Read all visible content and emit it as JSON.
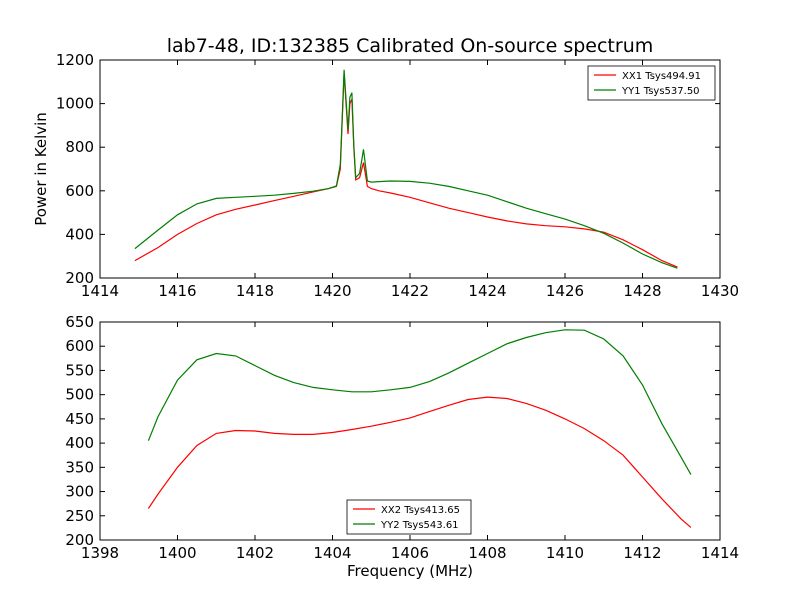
{
  "title": "lab7-48, ID:132385 Calibrated On-source spectrum",
  "colors": {
    "red": "#ff0000",
    "green": "#007f00"
  },
  "chart_data": [
    {
      "type": "line",
      "xlabel": "",
      "ylabel": "Power in Kelvin",
      "xlim": [
        1414,
        1430
      ],
      "ylim": [
        200,
        1200
      ],
      "xticks": [
        "1414",
        "1416",
        "1418",
        "1420",
        "1422",
        "1424",
        "1426",
        "1428",
        "1430"
      ],
      "yticks": [
        "200",
        "400",
        "600",
        "800",
        "1000",
        "1200"
      ],
      "legend_position": "top-right",
      "series": [
        {
          "name": "XX1 Tsys494.91",
          "color": "#ff0000",
          "x": [
            1414.9,
            1415.5,
            1416.0,
            1416.5,
            1417.0,
            1417.5,
            1418.0,
            1418.5,
            1419.0,
            1419.5,
            1419.9,
            1420.1,
            1420.2,
            1420.3,
            1420.4,
            1420.45,
            1420.5,
            1420.55,
            1420.6,
            1420.7,
            1420.8,
            1420.9,
            1421.0,
            1421.2,
            1421.5,
            1422.0,
            1422.5,
            1423.0,
            1423.5,
            1424.0,
            1424.5,
            1425.0,
            1425.5,
            1426.0,
            1426.5,
            1427.0,
            1427.5,
            1428.0,
            1428.5,
            1428.9
          ],
          "y": [
            280,
            340,
            400,
            450,
            490,
            515,
            535,
            555,
            575,
            595,
            610,
            620,
            700,
            1140,
            860,
            1000,
            1020,
            800,
            650,
            660,
            730,
            620,
            610,
            600,
            590,
            570,
            545,
            520,
            500,
            480,
            462,
            448,
            440,
            435,
            425,
            410,
            375,
            330,
            280,
            250
          ]
        },
        {
          "name": "YY1 Tsys537.50",
          "color": "#007f00",
          "x": [
            1414.9,
            1415.5,
            1416.0,
            1416.5,
            1417.0,
            1417.5,
            1418.0,
            1418.5,
            1419.0,
            1419.5,
            1419.9,
            1420.1,
            1420.2,
            1420.3,
            1420.4,
            1420.45,
            1420.5,
            1420.55,
            1420.6,
            1420.7,
            1420.8,
            1420.9,
            1421.0,
            1421.2,
            1421.5,
            1422.0,
            1422.5,
            1423.0,
            1423.5,
            1424.0,
            1424.5,
            1425.0,
            1425.5,
            1426.0,
            1426.5,
            1427.0,
            1427.5,
            1428.0,
            1428.5,
            1428.9
          ],
          "y": [
            335,
            420,
            490,
            540,
            565,
            570,
            575,
            580,
            588,
            598,
            610,
            622,
            720,
            1155,
            880,
            1030,
            1050,
            810,
            660,
            680,
            790,
            645,
            640,
            642,
            645,
            643,
            635,
            620,
            600,
            580,
            550,
            520,
            495,
            470,
            440,
            405,
            360,
            310,
            270,
            245
          ]
        }
      ]
    },
    {
      "type": "line",
      "xlabel": "Frequency (MHz)",
      "ylabel": "",
      "xlim": [
        1398,
        1414
      ],
      "ylim": [
        200,
        650
      ],
      "xticks": [
        "1398",
        "1400",
        "1402",
        "1404",
        "1406",
        "1408",
        "1410",
        "1412",
        "1414"
      ],
      "yticks": [
        "200",
        "250",
        "300",
        "350",
        "400",
        "450",
        "500",
        "550",
        "600",
        "650"
      ],
      "legend_position": "bottom-center",
      "series": [
        {
          "name": "XX2 Tsys413.65",
          "color": "#ff0000",
          "x": [
            1399.25,
            1399.5,
            1400.0,
            1400.5,
            1401.0,
            1401.5,
            1402.0,
            1402.5,
            1403.0,
            1403.5,
            1404.0,
            1404.5,
            1405.0,
            1405.5,
            1406.0,
            1406.5,
            1407.0,
            1407.5,
            1408.0,
            1408.5,
            1409.0,
            1409.5,
            1410.0,
            1410.5,
            1411.0,
            1411.5,
            1412.0,
            1412.5,
            1413.0,
            1413.25
          ],
          "y": [
            265,
            295,
            350,
            395,
            420,
            426,
            425,
            420,
            418,
            418,
            422,
            428,
            435,
            443,
            452,
            465,
            478,
            490,
            495,
            492,
            482,
            468,
            450,
            430,
            405,
            375,
            330,
            285,
            243,
            226
          ]
        },
        {
          "name": "YY2 Tsys543.61",
          "color": "#007f00",
          "x": [
            1399.25,
            1399.5,
            1400.0,
            1400.5,
            1401.0,
            1401.5,
            1402.0,
            1402.5,
            1403.0,
            1403.5,
            1404.0,
            1404.5,
            1405.0,
            1405.5,
            1406.0,
            1406.5,
            1407.0,
            1407.5,
            1408.0,
            1408.5,
            1409.0,
            1409.5,
            1410.0,
            1410.5,
            1411.0,
            1411.5,
            1412.0,
            1412.5,
            1413.0,
            1413.25
          ],
          "y": [
            405,
            455,
            530,
            572,
            585,
            580,
            560,
            540,
            525,
            515,
            510,
            506,
            506,
            510,
            515,
            527,
            545,
            565,
            585,
            605,
            618,
            628,
            634,
            633,
            615,
            580,
            520,
            440,
            370,
            335
          ]
        }
      ]
    }
  ]
}
